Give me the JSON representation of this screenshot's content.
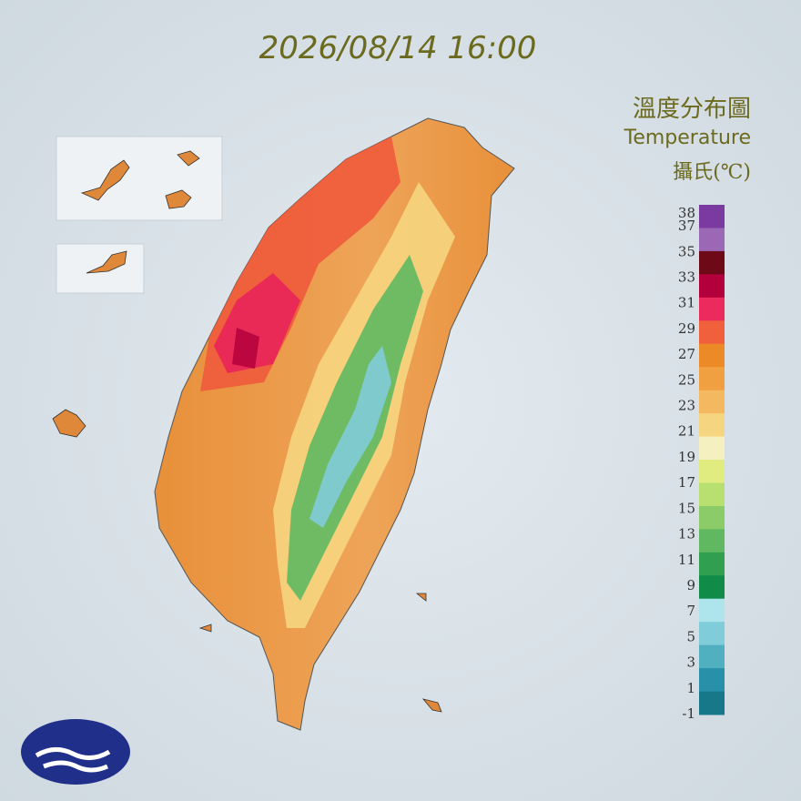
{
  "header": {
    "timestamp": "2026/08/14 16:00"
  },
  "legend": {
    "title": "溫度分布圖",
    "subtitle": "Temperature",
    "unit": "攝氏(℃)",
    "ticks": [
      38,
      37,
      35,
      33,
      31,
      29,
      27,
      25,
      23,
      21,
      19,
      17,
      15,
      13,
      11,
      9,
      7,
      5,
      3,
      1,
      -1
    ],
    "bands": [
      "#7b3aa0",
      "#9a68b4",
      "#6e0a18",
      "#b3003c",
      "#ec2a5e",
      "#f0603c",
      "#ec8a28",
      "#f0a040",
      "#f4b860",
      "#f6d580",
      "#f4f0c0",
      "#e0ec80",
      "#b8e070",
      "#8ccc68",
      "#60b860",
      "#30a050",
      "#108c48",
      "#aee4ec",
      "#80ccd8",
      "#50b0c0",
      "#2890a8",
      "#167888"
    ]
  }
}
